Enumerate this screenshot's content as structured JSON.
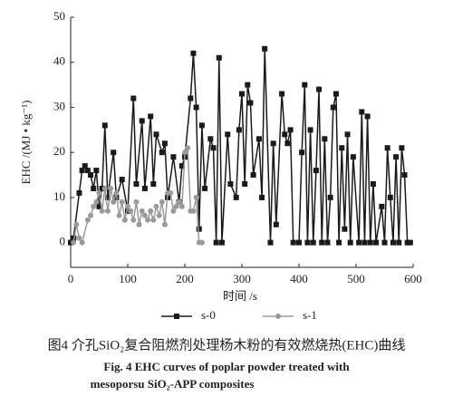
{
  "chart_data": {
    "type": "line",
    "x_label": "时间 /s",
    "y_label": "EHC /(MJ • kg⁻¹)",
    "caption": [
      "图4  介孔SiO₂复合阻燃剂处理杨木粉的有效燃烧热(EHC)曲线",
      "Fig. 4   EHC curves of poplar powder treated with",
      "mesoporsu SiO₂-APP composites"
    ],
    "xlim": [
      0,
      600
    ],
    "xticks": [
      0,
      100,
      200,
      300,
      400,
      500,
      600
    ],
    "ylim": [
      -5.5,
      50
    ],
    "yticks": [
      0,
      10,
      20,
      30,
      40,
      50
    ],
    "legend": "bottom",
    "series": [
      {
        "name": "s-0",
        "color": "#1a1a1a",
        "marker": "square",
        "x": [
          0,
          5,
          15,
          20,
          25,
          30,
          35,
          40,
          45,
          50,
          55,
          60,
          65,
          75,
          80,
          90,
          100,
          110,
          115,
          125,
          130,
          140,
          145,
          150,
          160,
          165,
          170,
          180,
          190,
          195,
          200,
          210,
          215,
          220,
          225,
          230,
          235,
          245,
          250,
          255,
          260,
          265,
          275,
          280,
          290,
          295,
          300,
          305,
          310,
          315,
          320,
          330,
          335,
          340,
          350,
          355,
          360,
          370,
          375,
          380,
          385,
          390,
          400,
          405,
          410,
          415,
          420,
          425,
          430,
          435,
          440,
          445,
          450,
          455,
          460,
          465,
          470,
          475,
          480,
          485,
          490,
          495,
          505,
          510,
          515,
          520,
          525,
          530,
          535,
          545,
          550,
          555,
          560,
          565,
          570,
          575,
          580,
          585,
          590,
          595
        ],
        "values": [
          0,
          1,
          11,
          16,
          17,
          16,
          15,
          12,
          16,
          8,
          12,
          26,
          10,
          20,
          10,
          14,
          7,
          32,
          13,
          27,
          12,
          28,
          13,
          24,
          20,
          22,
          10,
          19,
          9,
          17,
          19,
          32,
          42,
          30,
          3,
          26,
          12,
          23,
          21,
          0,
          41,
          0,
          24,
          13,
          10,
          25,
          33,
          13,
          35,
          31,
          15,
          23,
          10,
          43,
          0,
          22,
          4,
          33,
          24,
          22,
          25,
          0,
          0,
          20,
          35,
          0,
          25,
          0,
          16,
          34,
          0,
          23,
          0,
          10,
          30,
          33,
          0,
          21,
          3,
          24,
          0,
          19,
          0,
          29,
          0,
          28,
          0,
          13,
          0,
          8,
          0,
          21,
          10,
          0,
          19,
          0,
          21,
          15,
          0,
          0
        ]
      },
      {
        "name": "s-1",
        "color": "#9a9a9a",
        "marker": "circle",
        "x": [
          5,
          10,
          15,
          20,
          30,
          35,
          40,
          45,
          50,
          55,
          60,
          65,
          70,
          75,
          80,
          85,
          90,
          95,
          100,
          105,
          110,
          115,
          120,
          125,
          130,
          135,
          140,
          145,
          150,
          155,
          160,
          165,
          170,
          175,
          180,
          185,
          190,
          195,
          200,
          205,
          210,
          215,
          220,
          225,
          230
        ],
        "values": [
          0,
          4,
          1,
          0,
          5,
          6,
          8,
          9,
          11,
          7,
          12,
          7,
          12,
          9,
          11,
          6,
          9,
          5,
          8,
          7,
          5,
          9,
          4,
          7,
          6,
          5,
          7,
          5,
          8,
          6,
          9,
          4,
          11,
          11,
          7,
          8,
          9,
          8,
          20,
          21,
          7,
          7,
          10,
          0,
          0
        ]
      }
    ]
  }
}
